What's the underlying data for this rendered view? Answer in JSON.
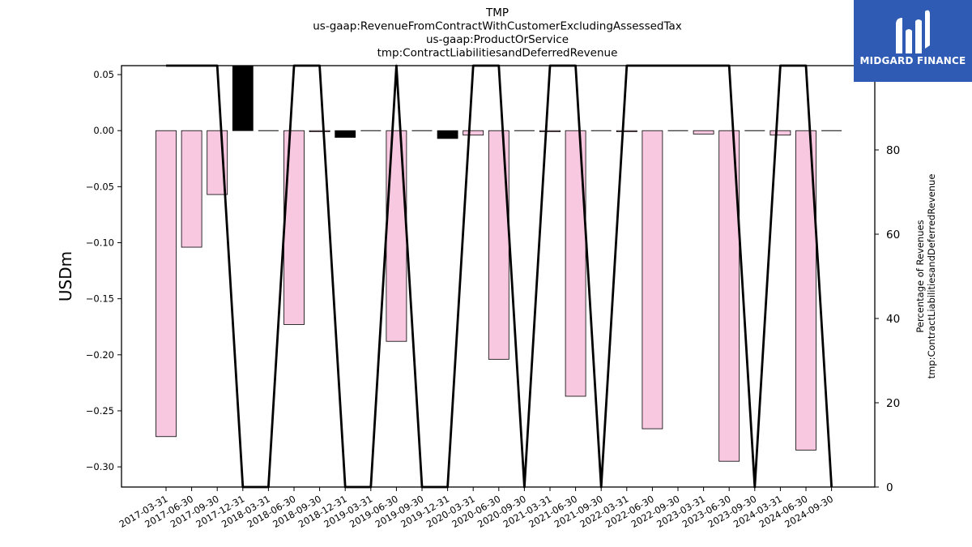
{
  "chart_data": {
    "type": "bar",
    "title_lines": [
      "TMP",
      "us-gaap:RevenueFromContractWithCustomerExcludingAssessedTax",
      "us-gaap:ProductOrService",
      "tmp:ContractLiabilitiesandDeferredRevenue"
    ],
    "ylabel": "USDm",
    "y2label_lines": [
      "Percentage of Revenues",
      "tmp:ContractLiabilitiesandDeferredRevenue"
    ],
    "ylim": [
      -0.318,
      0.058
    ],
    "y2lim": [
      0,
      100
    ],
    "yticks": [
      "0.05",
      "0.00",
      "−0.05",
      "−0.10",
      "−0.15",
      "−0.20",
      "−0.25",
      "−0.30"
    ],
    "ytick_values": [
      0.05,
      0.0,
      -0.05,
      -0.1,
      -0.15,
      -0.2,
      -0.25,
      -0.3
    ],
    "y2ticks": [
      "0",
      "20",
      "40",
      "60",
      "80",
      "100"
    ],
    "y2tick_values": [
      0,
      20,
      40,
      60,
      80,
      100
    ],
    "categories": [
      "2017-03-31",
      "2017-06-30",
      "2017-09-30",
      "2017-12-31",
      "2018-03-31",
      "2018-06-30",
      "2018-09-30",
      "2018-12-31",
      "2019-03-31",
      "2019-06-30",
      "2019-09-30",
      "2019-12-31",
      "2020-03-31",
      "2020-06-30",
      "2020-09-30",
      "2021-03-31",
      "2021-06-30",
      "2021-09-30",
      "2022-03-31",
      "2022-06-30",
      "2022-09-30",
      "2023-03-31",
      "2023-06-30",
      "2023-09-30",
      "2024-03-31",
      "2024-06-30",
      "2024-09-30"
    ],
    "series": [
      {
        "values": [
          -0.273,
          -0.104,
          -0.057,
          0.065,
          0.0,
          -0.173,
          -0.001,
          -0.006,
          0.0,
          -0.188,
          0.0,
          -0.007,
          -0.004,
          -0.204,
          0.0,
          -0.001,
          -0.237,
          0.0,
          -0.001,
          -0.266,
          0.0005,
          -0.003,
          -0.295,
          0.0,
          -0.004,
          -0.285,
          0.0
        ],
        "bar_colors": [
          "#f8c8e0",
          "#f8c8e0",
          "#f8c8e0",
          "#000000",
          "#000000",
          "#f8c8e0",
          "#f8c8e0",
          "#000000",
          "#000000",
          "#f8c8e0",
          "#000000",
          "#000000",
          "#f8c8e0",
          "#f8c8e0",
          "#000000",
          "#f8c8e0",
          "#f8c8e0",
          "#000000",
          "#f8c8e0",
          "#f8c8e0",
          "#000000",
          "#f8c8e0",
          "#f8c8e0",
          "#000000",
          "#f8c8e0",
          "#f8c8e0",
          "#000000"
        ]
      },
      {
        "type": "line",
        "axis": "right",
        "values": [
          100,
          100,
          100,
          0,
          0,
          100,
          100,
          0,
          0,
          100,
          0,
          0,
          100,
          100,
          0,
          100,
          100,
          0,
          100,
          100,
          100,
          100,
          100,
          0,
          100,
          100,
          0
        ],
        "color": "#000000"
      }
    ],
    "grid": false
  },
  "logo": {
    "text": "MIDGARD FINANCE",
    "bg_color": "#2f5bb4"
  }
}
